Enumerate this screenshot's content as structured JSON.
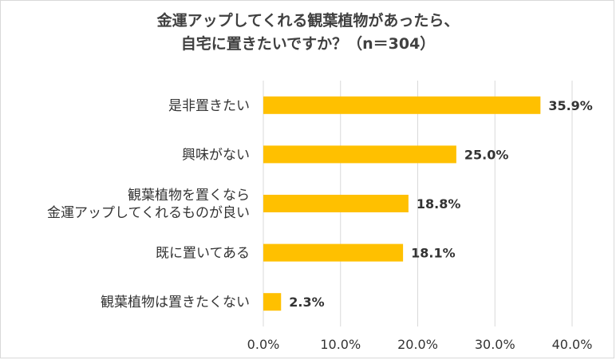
{
  "chart_data": {
    "type": "bar",
    "orientation": "horizontal",
    "title_lines": [
      "金運アップしてくれる観葉植物があったら、",
      "自宅に置きたいですか？（n＝304）"
    ],
    "categories": [
      [
        "是非置きたい"
      ],
      [
        "興味がない"
      ],
      [
        "観葉植物を置くなら",
        "金運アップしてくれるものが良い"
      ],
      [
        "既に置いてある"
      ],
      [
        "観葉植物は置きたくない"
      ]
    ],
    "values": [
      35.9,
      25.0,
      18.8,
      18.1,
      2.3
    ],
    "value_labels": [
      "35.9%",
      "25.0%",
      "18.8%",
      "18.1%",
      "2.3%"
    ],
    "xlim": [
      0,
      40
    ],
    "x_ticks": [
      0,
      10,
      20,
      30,
      40
    ],
    "x_tick_labels": [
      "0.0%",
      "10.0%",
      "20.0%",
      "30.0%",
      "40.0%"
    ],
    "grid": true,
    "legend": "none",
    "bar_color": "#FFC000",
    "grid_color": "#d9d9d9"
  }
}
